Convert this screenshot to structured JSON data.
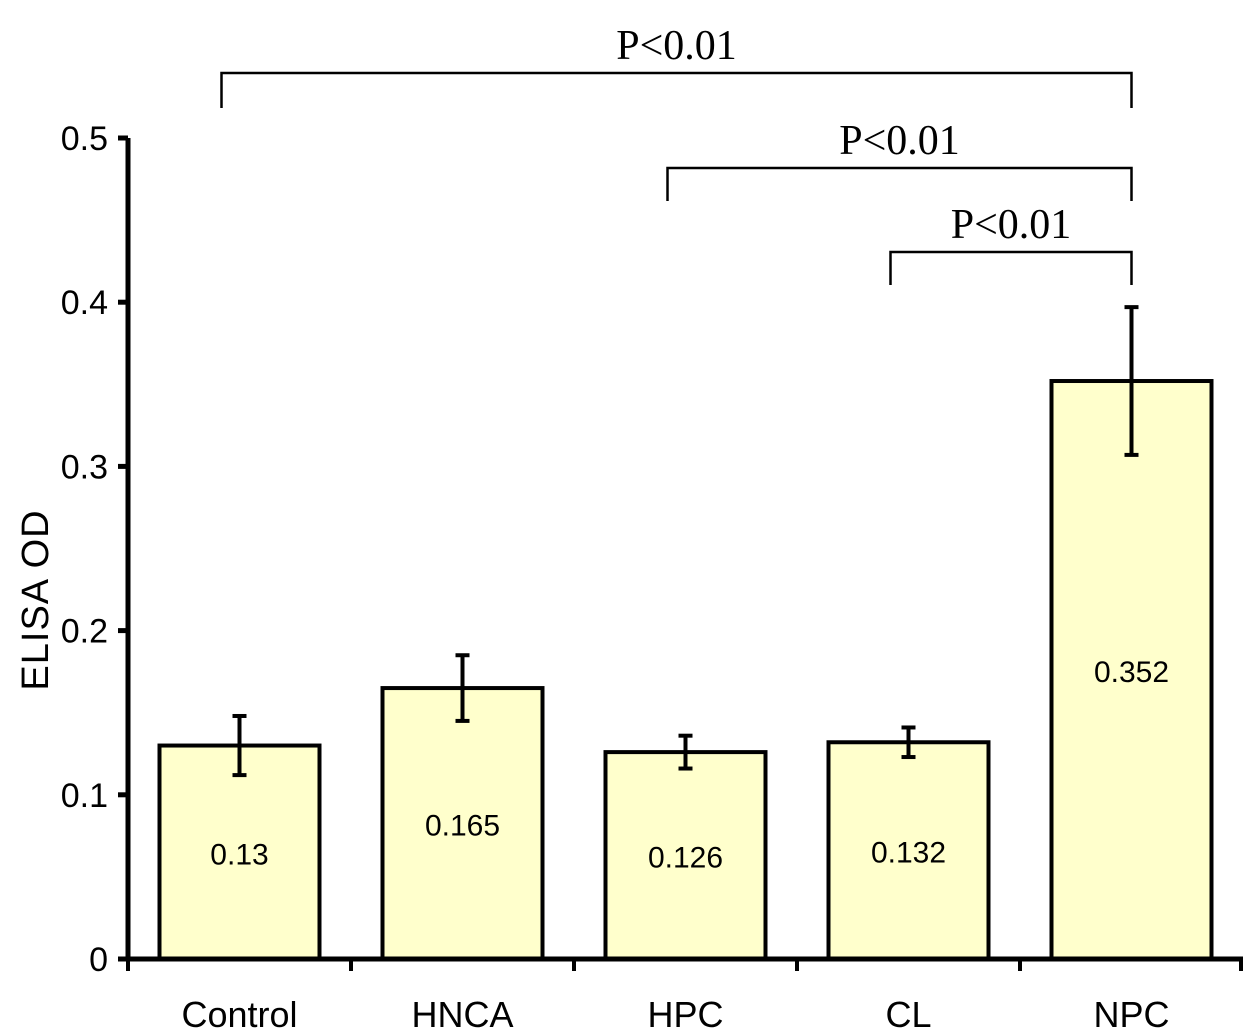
{
  "chart_data": {
    "type": "bar",
    "categories": [
      "Control",
      "HNCA",
      "HPC",
      "CL",
      "NPC"
    ],
    "values": [
      0.13,
      0.165,
      0.126,
      0.132,
      0.352
    ],
    "error_bars": [
      {
        "low": 0.112,
        "high": 0.148
      },
      {
        "low": 0.145,
        "high": 0.185
      },
      {
        "low": 0.116,
        "high": 0.136
      },
      {
        "low": 0.123,
        "high": 0.141
      },
      {
        "low": 0.307,
        "high": 0.397
      }
    ],
    "value_labels": [
      "0.13",
      "0.165",
      "0.126",
      "0.132",
      "0.352"
    ],
    "ylabel": "ELISA OD",
    "xlabel": "",
    "ylim": [
      0,
      0.5
    ],
    "yticks": [
      "0",
      "0.1",
      "0.2",
      "0.3",
      "0.4",
      "0.5"
    ],
    "bar_color": "#FFFFCC",
    "bar_edge_color": "#000000",
    "grid": false,
    "legend": "none",
    "significance": [
      {
        "from": "Control",
        "to": "NPC",
        "label": "P<0.01"
      },
      {
        "from": "HPC",
        "to": "NPC",
        "label": "P<0.01"
      },
      {
        "from": "CL",
        "to": "NPC",
        "label": "P<0.01"
      }
    ]
  }
}
